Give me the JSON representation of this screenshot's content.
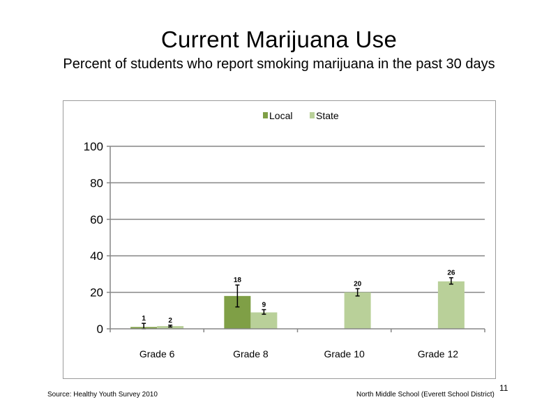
{
  "slide": {
    "title": "Current Marijuana Use",
    "subtitle": "Percent of students  who report smoking marijuana  in the past 30 days",
    "source": "Source: Healthy Youth Survey 2010",
    "school": "North Middle  School (Everett School District)",
    "slide_number": "11"
  },
  "chart_data": {
    "type": "bar",
    "title": "",
    "xlabel": "",
    "ylabel": "",
    "categories": [
      "Grade 6",
      "Grade 8",
      "Grade 10",
      "Grade 12"
    ],
    "ylim": [
      0,
      100
    ],
    "yticks": [
      0,
      20,
      40,
      60,
      80,
      100
    ],
    "grid": true,
    "legend_position": "top-center",
    "series": [
      {
        "name": "Local",
        "color": "#7f9f46",
        "values": [
          1,
          18,
          null,
          null
        ],
        "labels": [
          "1",
          "18",
          "",
          ""
        ],
        "error": [
          [
            0,
            3
          ],
          [
            12,
            24
          ],
          null,
          null
        ]
      },
      {
        "name": "State",
        "color": "#b9d099",
        "values": [
          1.5,
          9,
          20,
          26
        ],
        "labels": [
          "2",
          "9",
          "20",
          "26"
        ],
        "error": [
          [
            1,
            2
          ],
          [
            8,
            10.5
          ],
          [
            18,
            22
          ],
          [
            24.5,
            28
          ]
        ]
      }
    ]
  }
}
